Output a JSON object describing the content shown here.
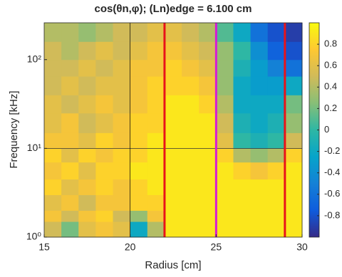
{
  "chart_data": {
    "type": "heatmap",
    "title": "cos(θn,φ); (Ln)edge = 6.100 cm",
    "x_label": "Radius [cm]",
    "y_label": "Frequency [kHz]",
    "xlim": [
      15,
      30
    ],
    "xticks": [
      15,
      20,
      25,
      30
    ],
    "ylim": [
      1,
      260
    ],
    "y_scale": "log",
    "yticks": [
      {
        "value": 1,
        "label": "10⁰"
      },
      {
        "value": 10,
        "label": "10¹"
      },
      {
        "value": 100,
        "label": "10²"
      }
    ],
    "x_edges": [
      15,
      16,
      17,
      18,
      19,
      20,
      21,
      22,
      23,
      24,
      25,
      26,
      27,
      28,
      29,
      30
    ],
    "y_edges": [
      1,
      1.5,
      2,
      3,
      4.5,
      7,
      10,
      15,
      25,
      40,
      65,
      100,
      160,
      260
    ],
    "values": [
      [
        0.5,
        0.2,
        0.6,
        0.7,
        0.6,
        -0.2,
        0.4,
        0.9,
        0.9,
        0.9,
        0.9,
        0.9,
        0.9,
        0.9,
        0.9
      ],
      [
        0.7,
        0.5,
        0.7,
        0.8,
        0.5,
        0.3,
        0.7,
        0.9,
        0.9,
        0.9,
        0.9,
        0.9,
        0.9,
        0.9,
        0.9
      ],
      [
        0.6,
        0.7,
        0.5,
        0.7,
        0.7,
        0.8,
        0.8,
        0.9,
        0.9,
        0.9,
        0.9,
        0.9,
        0.9,
        0.9,
        0.9
      ],
      [
        0.8,
        0.6,
        0.7,
        0.8,
        0.7,
        0.8,
        0.9,
        0.9,
        0.9,
        0.9,
        0.9,
        0.9,
        0.9,
        0.9,
        0.9
      ],
      [
        0.7,
        0.8,
        0.6,
        0.8,
        0.8,
        0.9,
        0.9,
        0.9,
        0.9,
        0.9,
        0.9,
        0.8,
        0.7,
        0.8,
        0.9
      ],
      [
        0.8,
        0.6,
        0.8,
        0.7,
        0.8,
        0.8,
        0.9,
        0.9,
        0.9,
        0.9,
        0.8,
        0.4,
        0.3,
        0.4,
        0.8
      ],
      [
        0.7,
        0.7,
        0.6,
        0.8,
        0.7,
        0.8,
        0.9,
        0.9,
        0.9,
        0.9,
        0.6,
        0.0,
        -0.1,
        0.0,
        0.5
      ],
      [
        0.6,
        0.7,
        0.5,
        0.6,
        0.7,
        0.8,
        0.8,
        0.9,
        0.9,
        0.9,
        0.5,
        -0.1,
        -0.2,
        -0.1,
        0.3
      ],
      [
        0.6,
        0.5,
        0.6,
        0.7,
        0.6,
        0.7,
        0.8,
        0.9,
        0.9,
        0.8,
        0.4,
        -0.2,
        -0.2,
        -0.2,
        0.2
      ],
      [
        0.5,
        0.6,
        0.5,
        0.6,
        0.6,
        0.7,
        0.8,
        0.8,
        0.8,
        0.7,
        0.3,
        -0.2,
        -0.3,
        -0.3,
        -0.2
      ],
      [
        0.5,
        0.5,
        0.6,
        0.5,
        0.6,
        0.7,
        0.7,
        0.8,
        0.7,
        0.6,
        0.3,
        -0.1,
        -0.3,
        -0.5,
        -0.6
      ],
      [
        0.5,
        0.4,
        0.5,
        0.6,
        0.5,
        0.6,
        0.7,
        0.7,
        0.6,
        0.5,
        0.3,
        0.0,
        -0.4,
        -0.7,
        -0.8
      ],
      [
        0.4,
        0.4,
        0.3,
        0.4,
        0.5,
        0.5,
        0.6,
        0.6,
        0.5,
        0.4,
        0.1,
        -0.2,
        -0.6,
        -0.8,
        -0.9
      ]
    ],
    "clim": [
      -1,
      1
    ],
    "cticks": [
      -0.8,
      -0.6,
      -0.4,
      -0.2,
      0,
      0.2,
      0.4,
      0.6,
      0.8
    ],
    "colormap": [
      "#352a87",
      "#0f5cdd",
      "#1481d6",
      "#06a4ca",
      "#2eb7a4",
      "#87bf77",
      "#d1bb59",
      "#fec832",
      "#f9fb0e"
    ],
    "vlines": [
      {
        "x": 20,
        "color": "#000000"
      },
      {
        "x": 22,
        "color": "#e8131a"
      },
      {
        "x": 25,
        "color": "#d61ad6"
      },
      {
        "x": 29,
        "color": "#e8131a"
      }
    ],
    "hlines": [
      {
        "y": 10,
        "color": "#333333"
      }
    ]
  }
}
